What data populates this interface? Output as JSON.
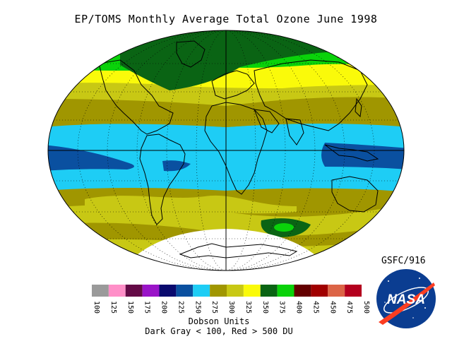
{
  "title": "EP/TOMS Monthly Average Total Ozone June 1998",
  "credit": "GSFC/916",
  "legend": {
    "ticks": [
      "100",
      "125",
      "150",
      "175",
      "200",
      "225",
      "250",
      "275",
      "300",
      "325",
      "350",
      "375",
      "400",
      "425",
      "450",
      "475",
      "500"
    ],
    "colors": [
      "#9a9a9a",
      "#ff8fc8",
      "#640a46",
      "#9a14c8",
      "#0a0a6e",
      "#0a50a0",
      "#1ecdf5",
      "#a09600",
      "#c8c814",
      "#fafa0a",
      "#0a6414",
      "#0ad20a",
      "#640000",
      "#a00000",
      "#dc6446",
      "#b4001e"
    ],
    "units_label": "Dobson Units",
    "note": "Dark Gray < 100, Red > 500 DU"
  },
  "map": {
    "band_colors": {
      "arctic_green": "#0a6414",
      "bright_green": "#0ad20a",
      "yellow": "#fafa0a",
      "yellow_olive": "#c8c814",
      "olive": "#a09600",
      "cyan": "#1ecdf5",
      "blue": "#0a50a0",
      "dark_red": "#640000",
      "antarctic_no_data": "#ffffff"
    }
  },
  "logo": {
    "text": "NASA",
    "icon": "nasa-meatball-icon"
  }
}
